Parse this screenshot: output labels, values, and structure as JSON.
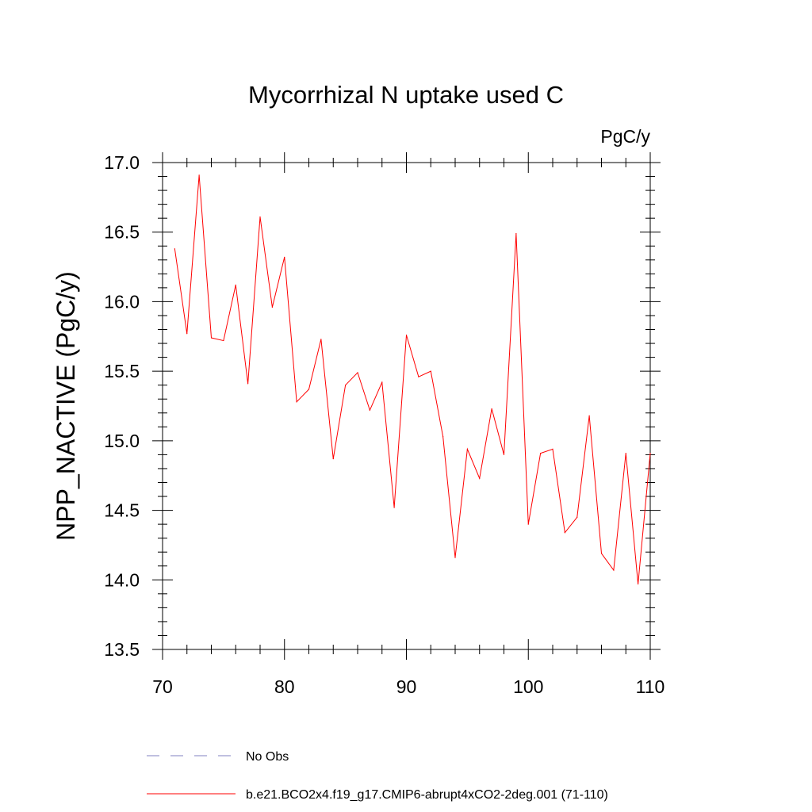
{
  "chart_data": {
    "type": "line",
    "title": "Mycorrhizal N uptake used C",
    "units_label": "PgC/y",
    "ylabel": "NPP_NACTIVE  (PgC/y)",
    "xlabel": "",
    "xlim": [
      70,
      110
    ],
    "ylim": [
      13.5,
      17.0
    ],
    "x_ticks": [
      70,
      80,
      90,
      100,
      110
    ],
    "x_tick_labels": [
      "70",
      "80",
      "90",
      "100",
      "110"
    ],
    "y_ticks": [
      13.5,
      14.0,
      14.5,
      15.0,
      15.5,
      16.0,
      16.5,
      17.0
    ],
    "y_tick_labels": [
      "13.5",
      "14.0",
      "14.5",
      "15.0",
      "15.5",
      "16.0",
      "16.5",
      "17.0"
    ],
    "grid": false,
    "legend_placement": "bottom",
    "series": [
      {
        "name": "b.e21.BCO2x4.f19_g17.CMIP6-abrupt4xCO2-2deg.001 (71-110)",
        "color": "#ff0000",
        "style": "solid",
        "x": [
          71,
          72,
          73,
          74,
          75,
          76,
          77,
          78,
          79,
          80,
          81,
          82,
          83,
          84,
          85,
          86,
          87,
          88,
          89,
          90,
          91,
          92,
          93,
          94,
          95,
          96,
          97,
          98,
          99,
          100,
          101,
          102,
          103,
          104,
          105,
          106,
          107,
          108,
          109,
          110
        ],
        "values": [
          16.38,
          15.77,
          16.91,
          15.74,
          15.72,
          16.12,
          15.41,
          16.61,
          15.96,
          16.32,
          15.28,
          15.37,
          15.73,
          14.87,
          15.4,
          15.49,
          15.22,
          15.42,
          14.52,
          15.76,
          15.46,
          15.5,
          15.03,
          14.16,
          14.94,
          14.73,
          15.23,
          14.9,
          16.49,
          14.4,
          14.91,
          14.94,
          14.34,
          14.45,
          15.18,
          14.19,
          14.07,
          14.91,
          13.97,
          14.91
        ]
      },
      {
        "name": "No Obs",
        "color": "#8080c0",
        "style": "dashed",
        "x": [],
        "values": []
      }
    ]
  }
}
